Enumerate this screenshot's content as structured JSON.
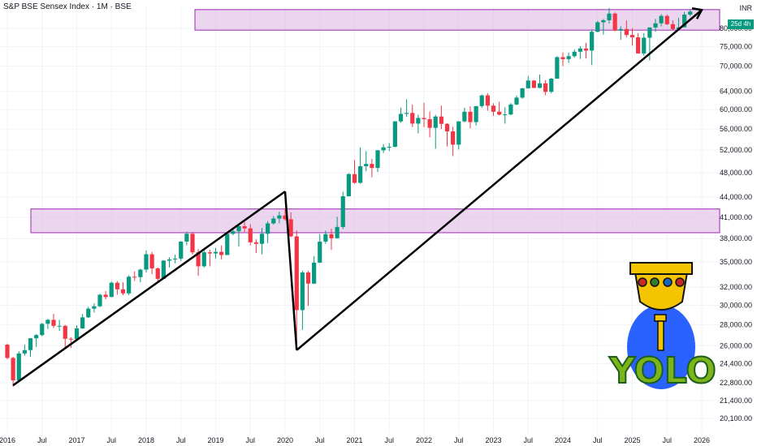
{
  "header": {
    "title": "S&P BSE Sensex Index · 1M · BSE",
    "currency": "INR",
    "countdown_badge": "25d 4h"
  },
  "colors": {
    "up": "#089981",
    "down": "#f23645",
    "zone_fill": "#e1bee7",
    "zone_stroke": "#9c27b0",
    "trendline": "#000000",
    "logo_gold": "#f5c400",
    "logo_green": "#7cb518",
    "logo_blue": "#2962ff"
  },
  "logo": {
    "text": "YOLO",
    "icon": "golden-cup-icon"
  },
  "chart_data": {
    "type": "candlestick",
    "title": "S&P BSE Sensex Index · 1M · BSE",
    "price_axis": {
      "scale": "log",
      "ticks": [
        "20,100.00",
        "21,400.00",
        "22,800.00",
        "24,400.00",
        "26,000.00",
        "28,000.00",
        "30,000.00",
        "32,000.00",
        "35,000.00",
        "38,000.00",
        "41,000.00",
        "44,000.00",
        "48,000.00",
        "52,000.00",
        "56,000.00",
        "60,000.00",
        "64,000.00",
        "70,000.00",
        "75,000.00",
        "80,000.00"
      ]
    },
    "time_axis": {
      "labels": [
        "2016",
        "Jul",
        "2017",
        "Jul",
        "2018",
        "Jul",
        "2019",
        "Jul",
        "2020",
        "Jul",
        "2021",
        "Jul",
        "2022",
        "Jul",
        "2023",
        "Jul",
        "2024",
        "Jul",
        "2025",
        "Jul",
        "2026"
      ]
    },
    "grid": true,
    "zones": [
      {
        "from": 38800,
        "to": 42200
      },
      {
        "from": 79500,
        "to": 85500
      }
    ],
    "trendlines": [
      {
        "start": [
          "2016-02",
          22600
        ],
        "end": [
          "2020-01",
          44900
        ]
      },
      {
        "start": [
          "2020-01",
          44900
        ],
        "end": [
          "2020-03",
          25600
        ]
      },
      {
        "start": [
          "2020-03",
          25600
        ],
        "end": [
          "2026-01",
          85400
        ]
      }
    ],
    "candles": [
      [
        "2016-01",
        26100,
        26200,
        24800,
        24900
      ],
      [
        "2016-02",
        24900,
        25000,
        22500,
        23000
      ],
      [
        "2016-03",
        23000,
        25500,
        22900,
        25300
      ],
      [
        "2016-04",
        25300,
        26100,
        25100,
        25600
      ],
      [
        "2016-05",
        25600,
        26700,
        25000,
        26700
      ],
      [
        "2016-06",
        26700,
        27100,
        25900,
        27000
      ],
      [
        "2016-07",
        27000,
        28200,
        26900,
        28100
      ],
      [
        "2016-08",
        28100,
        28600,
        27600,
        28500
      ],
      [
        "2016-09",
        28500,
        29100,
        27700,
        27900
      ],
      [
        "2016-10",
        27900,
        28500,
        27400,
        27900
      ],
      [
        "2016-11",
        27900,
        28000,
        25700,
        26650
      ],
      [
        "2016-12",
        26650,
        26800,
        25800,
        26600
      ],
      [
        "2017-01",
        26600,
        27950,
        26450,
        27650
      ],
      [
        "2017-02",
        27650,
        29100,
        27600,
        28750
      ],
      [
        "2017-03",
        28750,
        29850,
        28700,
        29650
      ],
      [
        "2017-04",
        29650,
        30200,
        29250,
        29900
      ],
      [
        "2017-05",
        29900,
        31250,
        29800,
        31150
      ],
      [
        "2017-06",
        31150,
        31550,
        30650,
        30900
      ],
      [
        "2017-07",
        30900,
        32650,
        30900,
        32500
      ],
      [
        "2017-08",
        32500,
        32700,
        31150,
        31750
      ],
      [
        "2017-09",
        31750,
        32550,
        31100,
        31300
      ],
      [
        "2017-10",
        31300,
        33350,
        31100,
        33200
      ],
      [
        "2017-11",
        33200,
        33850,
        32700,
        33150
      ],
      [
        "2017-12",
        33150,
        34150,
        32550,
        34050
      ],
      [
        "2018-01",
        34050,
        36450,
        33700,
        35950
      ],
      [
        "2018-02",
        35950,
        36250,
        33500,
        34200
      ],
      [
        "2018-03",
        34200,
        34300,
        32500,
        32950
      ],
      [
        "2018-04",
        32950,
        35200,
        32950,
        35150
      ],
      [
        "2018-05",
        35150,
        35550,
        34300,
        35300
      ],
      [
        "2018-06",
        35300,
        35900,
        34800,
        35400
      ],
      [
        "2018-07",
        35400,
        37650,
        35100,
        37600
      ],
      [
        "2018-08",
        37600,
        38950,
        37100,
        38650
      ],
      [
        "2018-09",
        38650,
        38900,
        35900,
        36200
      ],
      [
        "2018-10",
        36200,
        36600,
        33300,
        34450
      ],
      [
        "2018-11",
        34450,
        36400,
        34300,
        36200
      ],
      [
        "2018-12",
        36200,
        36550,
        34450,
        36050
      ],
      [
        "2019-01",
        36050,
        36750,
        35400,
        36250
      ],
      [
        "2019-02",
        36250,
        37100,
        35300,
        35850
      ],
      [
        "2019-03",
        35850,
        38750,
        35850,
        38650
      ],
      [
        "2019-04",
        38650,
        39500,
        38450,
        39000
      ],
      [
        "2019-05",
        39000,
        40100,
        36950,
        39700
      ],
      [
        "2019-06",
        39700,
        40300,
        38900,
        39400
      ],
      [
        "2019-07",
        39400,
        40000,
        37100,
        37500
      ],
      [
        "2019-08",
        37500,
        37900,
        36100,
        37300
      ],
      [
        "2019-09",
        37300,
        39450,
        35950,
        38650
      ],
      [
        "2019-10",
        38650,
        40400,
        37400,
        40100
      ],
      [
        "2019-11",
        40100,
        41150,
        39950,
        40800
      ],
      [
        "2019-12",
        40800,
        41800,
        40100,
        41250
      ],
      [
        "2020-01",
        41250,
        42250,
        40500,
        40700
      ],
      [
        "2020-02",
        40700,
        41700,
        38200,
        38300
      ],
      [
        "2020-03",
        38300,
        39100,
        25650,
        29500
      ],
      [
        "2020-04",
        29500,
        33900,
        27500,
        33700
      ],
      [
        "2020-05",
        33700,
        33900,
        29950,
        32400
      ],
      [
        "2020-06",
        32400,
        35700,
        32350,
        34900
      ],
      [
        "2020-07",
        34900,
        38600,
        34850,
        37600
      ],
      [
        "2020-08",
        37600,
        39100,
        37300,
        38600
      ],
      [
        "2020-09",
        38600,
        39350,
        36500,
        38050
      ],
      [
        "2020-10",
        38050,
        41050,
        38000,
        39600
      ],
      [
        "2020-11",
        39600,
        44850,
        39300,
        44150
      ],
      [
        "2020-12",
        44150,
        47900,
        44100,
        47750
      ],
      [
        "2021-01",
        47750,
        50200,
        46150,
        46300
      ],
      [
        "2021-02",
        46300,
        52500,
        46150,
        49100
      ],
      [
        "2021-03",
        49100,
        51800,
        48250,
        49500
      ],
      [
        "2021-04",
        49500,
        50400,
        47200,
        48800
      ],
      [
        "2021-05",
        48800,
        52000,
        48100,
        51950
      ],
      [
        "2021-06",
        51950,
        53100,
        51450,
        52500
      ],
      [
        "2021-07",
        52500,
        53300,
        51800,
        52600
      ],
      [
        "2021-08",
        52600,
        57600,
        52500,
        57550
      ],
      [
        "2021-09",
        57550,
        60400,
        57300,
        59100
      ],
      [
        "2021-10",
        59100,
        62250,
        58500,
        59300
      ],
      [
        "2021-11",
        59300,
        61050,
        56400,
        57100
      ],
      [
        "2021-12",
        57100,
        58900,
        55150,
        58250
      ],
      [
        "2022-01",
        58250,
        61500,
        56400,
        58000
      ],
      [
        "2022-02",
        58000,
        59600,
        54400,
        56250
      ],
      [
        "2022-03",
        56250,
        58900,
        52250,
        58550
      ],
      [
        "2022-04",
        58550,
        60850,
        56000,
        57050
      ],
      [
        "2022-05",
        57050,
        57200,
        52650,
        55550
      ],
      [
        "2022-06",
        55550,
        56450,
        50900,
        53000
      ],
      [
        "2022-07",
        53000,
        57600,
        52100,
        57550
      ],
      [
        "2022-08",
        57550,
        60400,
        57350,
        59550
      ],
      [
        "2022-09",
        59550,
        60700,
        56150,
        57400
      ],
      [
        "2022-10",
        57400,
        60800,
        56700,
        60750
      ],
      [
        "2022-11",
        60750,
        63300,
        60400,
        63100
      ],
      [
        "2022-12",
        63100,
        63600,
        59750,
        60850
      ],
      [
        "2023-01",
        60850,
        61350,
        58700,
        59550
      ],
      [
        "2023-02",
        59550,
        61700,
        58800,
        58950
      ],
      [
        "2023-03",
        58950,
        60500,
        57100,
        58990
      ],
      [
        "2023-04",
        58990,
        61400,
        58800,
        61100
      ],
      [
        "2023-05",
        61100,
        63050,
        60950,
        62600
      ],
      [
        "2023-06",
        62600,
        64800,
        62350,
        64700
      ],
      [
        "2023-07",
        64700,
        67600,
        64700,
        66500
      ],
      [
        "2023-08",
        66500,
        66650,
        64750,
        64800
      ],
      [
        "2023-09",
        64800,
        67950,
        64700,
        65850
      ],
      [
        "2023-10",
        65850,
        66600,
        63100,
        63900
      ],
      [
        "2023-11",
        63900,
        67100,
        63600,
        66950
      ],
      [
        "2023-12",
        66950,
        72500,
        67100,
        72250
      ],
      [
        "2024-01",
        72250,
        73450,
        70000,
        71750
      ],
      [
        "2024-02",
        71750,
        73400,
        70800,
        72500
      ],
      [
        "2024-03",
        72500,
        74250,
        72150,
        73650
      ],
      [
        "2024-04",
        73650,
        75100,
        71800,
        74500
      ],
      [
        "2024-05",
        74500,
        76000,
        71900,
        73950
      ],
      [
        "2024-06",
        73950,
        79700,
        70250,
        79050
      ],
      [
        "2024-07",
        79050,
        82150,
        78900,
        81750
      ],
      [
        "2024-08",
        81750,
        82650,
        78300,
        82350
      ],
      [
        "2024-09",
        82350,
        85980,
        81400,
        84300
      ],
      [
        "2024-10",
        84300,
        84650,
        79150,
        79400
      ],
      [
        "2024-11",
        79400,
        80600,
        76800,
        79800
      ],
      [
        "2024-12",
        79800,
        82300,
        77550,
        78150
      ],
      [
        "2025-01",
        78150,
        80050,
        75250,
        77500
      ],
      [
        "2025-02",
        77500,
        78700,
        73150,
        73200
      ],
      [
        "2025-03",
        73200,
        78700,
        72650,
        77400
      ],
      [
        "2025-04",
        77400,
        80300,
        71450,
        80250
      ],
      [
        "2025-05",
        80250,
        82750,
        79050,
        81450
      ],
      [
        "2025-06",
        81450,
        84100,
        80600,
        83600
      ],
      [
        "2025-07",
        83600,
        84000,
        80950,
        81200
      ],
      [
        "2025-08",
        81200,
        82300,
        79450,
        79800
      ],
      [
        "2025-09",
        79800,
        83000,
        79900,
        80300
      ],
      [
        "2025-10",
        80300,
        84800,
        80300,
        84000
      ],
      [
        "2025-11",
        84000,
        85500,
        83500,
        84900
      ]
    ]
  }
}
